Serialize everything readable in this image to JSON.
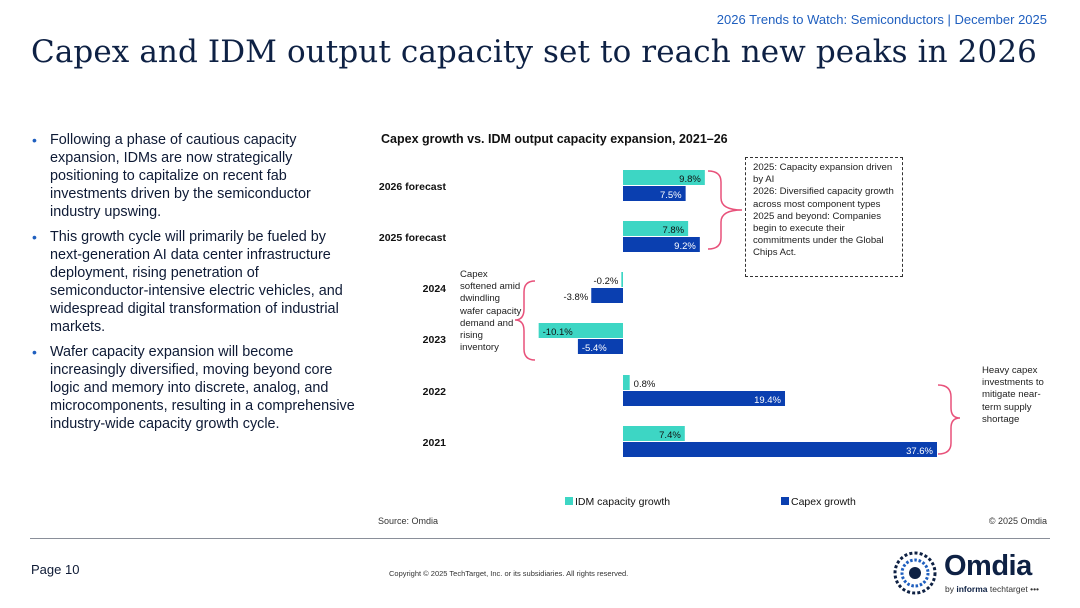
{
  "header": {
    "tag": "2026 Trends to Watch: Semiconductors | December 2025",
    "title": "Capex and IDM output capacity set to reach new peaks in 2026"
  },
  "bullets": [
    "Following a phase of cautious capacity expansion, IDMs are now strategically positioning to capitalize on recent fab investments driven by the semiconductor industry upswing.",
    "This growth cycle will primarily be fueled by next-generation AI data center infrastructure deployment, rising penetration of semiconductor-intensive electric vehicles, and widespread digital transformation of industrial markets.",
    "Wafer capacity expansion will become increasingly diversified, moving beyond core logic and memory into discrete, analog, and microcomponents, resulting in a comprehensive industry-wide capacity growth cycle."
  ],
  "chart_data": {
    "type": "bar",
    "orientation": "horizontal",
    "title": "Capex growth vs. IDM output capacity expansion, 2021–26",
    "categories": [
      "2026 forecast",
      "2025 forecast",
      "2024",
      "2023",
      "2022",
      "2021"
    ],
    "series": [
      {
        "name": "IDM capacity growth",
        "color": "#3dd6c4",
        "values": [
          9.8,
          7.8,
          -0.2,
          -10.1,
          0.8,
          7.4
        ],
        "labels": [
          "9.8%",
          "7.8%",
          "-0.2%",
          "-10.1%",
          "0.8%",
          "7.4%"
        ]
      },
      {
        "name": "Capex growth",
        "color": "#0a3fb0",
        "values": [
          7.5,
          9.2,
          -3.8,
          -5.4,
          19.4,
          37.6
        ],
        "labels": [
          "7.5%",
          "9.2%",
          "-3.8%",
          "-5.4%",
          "19.4%",
          "37.6%"
        ]
      }
    ],
    "xlim": [
      -10.1,
      37.6
    ],
    "annotations": [
      "2025: Capacity expansion driven by AI\n2026: Diversified capacity growth across most component types\n2025 and beyond: Companies begin to execute their commitments under the Global Chips Act.",
      "Capex softened amid dwindling wafer capacity demand and rising inventory",
      "Heavy capex investments to mitigate near-term supply shortage"
    ],
    "source": "Source: Omdia",
    "copyright": "© 2025 Omdia"
  },
  "footer": {
    "page": "Page 10",
    "copyright": "Copyright © 2025 TechTarget, Inc. or its subsidiaries. All rights reserved.",
    "logo_word": "Omdia",
    "logo_by": "by",
    "logo_informa": "informa",
    "logo_techtarget": "techtarget"
  },
  "colors": {
    "accent": "#1f5fbf",
    "teal": "#3dd6c4",
    "navy": "#0a3fb0",
    "bracket": "#e8517a"
  }
}
